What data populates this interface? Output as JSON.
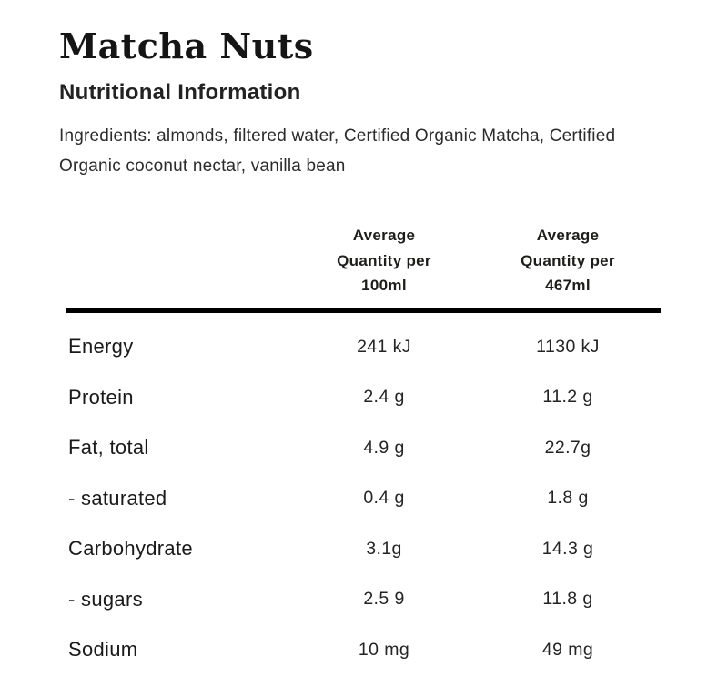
{
  "page": {
    "title": "Matcha Nuts",
    "subtitle": "Nutritional Information",
    "ingredients": "Ingredients: almonds, filtered water, Certified Organic Matcha, Certified Organic coconut nectar, vanilla bean"
  },
  "table": {
    "header_col2": {
      "line1": "Average",
      "line2": "Quantity per",
      "line3": "100ml"
    },
    "header_col3": {
      "line1": "Average",
      "line2": "Quantity per",
      "line3": "467ml"
    },
    "rows": [
      {
        "nutrient": "Energy",
        "per_100ml": "241 kJ",
        "per_467ml": "1130 kJ"
      },
      {
        "nutrient": "Protein",
        "per_100ml": "2.4 g",
        "per_467ml": "11.2 g"
      },
      {
        "nutrient": "Fat, total",
        "per_100ml": "4.9 g",
        "per_467ml": "22.7g"
      },
      {
        "nutrient": "- saturated",
        "per_100ml": "0.4 g",
        "per_467ml": "1.8 g"
      },
      {
        "nutrient": "Carbohydrate",
        "per_100ml": "3.1g",
        "per_467ml": "14.3 g"
      },
      {
        "nutrient": "- sugars",
        "per_100ml": "2.5 9",
        "per_467ml": "11.8 g"
      },
      {
        "nutrient": "Sodium",
        "per_100ml": "10 mg",
        "per_467ml": "49 mg"
      }
    ]
  },
  "colors": {
    "text": "#1d1d1b",
    "background": "#ffffff",
    "divider": "#000000"
  }
}
